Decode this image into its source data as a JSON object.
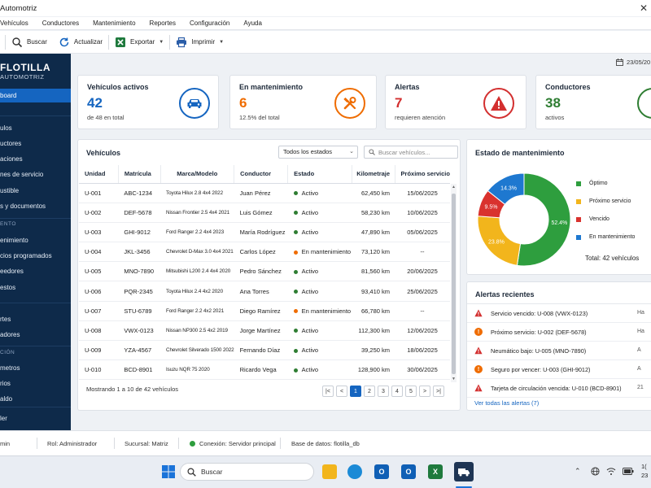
{
  "window": {
    "title": "Automotriz",
    "close_glyph": "✕"
  },
  "menu": [
    "Vehículos",
    "Conductores",
    "Mantenimiento",
    "Reportes",
    "Configuración",
    "Ayuda"
  ],
  "toolbar": {
    "search": "Buscar",
    "refresh": "Actualizar",
    "export": "Exportar",
    "print": "Imprimir"
  },
  "sidebar": {
    "brand_line1": "FLOTILLA",
    "brand_line2": "AUTOMOTRIZ",
    "dashboard": "board",
    "items_a": [
      "ulos",
      "uctores",
      "aciones",
      "nes de servicio",
      "ustible",
      "s y documentos"
    ],
    "section_b": "ENTO",
    "items_b": [
      "enimiento",
      "cios programados",
      "eedores",
      "estos"
    ],
    "items_c": [
      "rtes",
      "adores"
    ],
    "section_d": "CIÓN",
    "items_d": [
      "metros",
      "rios",
      "aldo"
    ],
    "bottom": "ler"
  },
  "date": "23/05/20",
  "kpis": {
    "vehicles": {
      "label": "Vehículos activos",
      "value": "42",
      "sub": "de 48 en total",
      "color": "#1565c0"
    },
    "maintenance": {
      "label": "En mantenimiento",
      "value": "6",
      "sub": "12.5% del total",
      "color": "#ef6c00"
    },
    "alerts": {
      "label": "Alertas",
      "value": "7",
      "sub": "requieren atención",
      "color": "#d32f2f"
    },
    "drivers": {
      "label": "Conductores",
      "value": "38",
      "sub": "activos",
      "color": "#2e7d32"
    }
  },
  "vehicles_panel": {
    "title": "Vehículos",
    "filter": "Todos los estados",
    "search_placeholder": "Buscar vehículos...",
    "columns": [
      "Unidad",
      "Matrícula",
      "Marca/Modelo",
      "Conductor",
      "Estado",
      "Kilometraje",
      "Próximo servicio"
    ],
    "rows": [
      {
        "unit": "U-001",
        "plate": "ABC-1234",
        "model": "Toyota Hilux 2.8 4x4 2022",
        "driver": "Juan Pérez",
        "status": "Activo",
        "km": "62,450 km",
        "next": "15/06/2025"
      },
      {
        "unit": "U-002",
        "plate": "DEF-5678",
        "model": "Nissan Frontier 2.5 4x4 2021",
        "driver": "Luis Gómez",
        "status": "Activo",
        "km": "58,230 km",
        "next": "10/06/2025"
      },
      {
        "unit": "U-003",
        "plate": "GHI-9012",
        "model": "Ford Ranger 2.2 4x4 2023",
        "driver": "María Rodríguez",
        "status": "Activo",
        "km": "47,890 km",
        "next": "05/06/2025"
      },
      {
        "unit": "U-004",
        "plate": "JKL-3456",
        "model": "Chevrolet D-Max 3.0 4x4 2021",
        "driver": "Carlos López",
        "status": "En mantenimiento",
        "km": "73,120 km",
        "next": "--"
      },
      {
        "unit": "U-005",
        "plate": "MNO-7890",
        "model": "Mitsubishi L200 2.4 4x4 2020",
        "driver": "Pedro Sánchez",
        "status": "Activo",
        "km": "81,560 km",
        "next": "20/06/2025"
      },
      {
        "unit": "U-006",
        "plate": "PQR-2345",
        "model": "Toyota Hilux 2.4 4x2 2020",
        "driver": "Ana Torres",
        "status": "Activo",
        "km": "93,410 km",
        "next": "25/06/2025"
      },
      {
        "unit": "U-007",
        "plate": "STU-6789",
        "model": "Ford Ranger 2.2 4x2 2021",
        "driver": "Diego Ramírez",
        "status": "En mantenimiento",
        "km": "66,780 km",
        "next": "--"
      },
      {
        "unit": "U-008",
        "plate": "VWX-0123",
        "model": "Nissan NP300 2.5 4x2 2019",
        "driver": "Jorge Martínez",
        "status": "Activo",
        "km": "112,300 km",
        "next": "12/06/2025"
      },
      {
        "unit": "U-009",
        "plate": "YZA-4567",
        "model": "Chevrolet Silverado 1500 2022",
        "driver": "Fernando Díaz",
        "status": "Activo",
        "km": "39,250 km",
        "next": "18/06/2025"
      },
      {
        "unit": "U-010",
        "plate": "BCD-8901",
        "model": "Isuzu NQR 75 2020",
        "driver": "Ricardo Vega",
        "status": "Activo",
        "km": "128,900 km",
        "next": "30/06/2025"
      }
    ],
    "showing": "Mostrando 1 a 10 de 42 vehículos",
    "pages": [
      "1",
      "2",
      "3",
      "4",
      "5"
    ],
    "pager_first": "|<",
    "pager_prev": "<",
    "pager_next": ">",
    "pager_last": ">|"
  },
  "status_colors": {
    "Activo": "#2e7d32",
    "En mantenimiento": "#ef6c00"
  },
  "maintenance_panel": {
    "title": "Estado de mantenimiento",
    "total": "Total:  42 vehículos"
  },
  "chart_data": {
    "type": "pie",
    "title": "Estado de mantenimiento",
    "slices": [
      {
        "name": "Óptimo",
        "value": 52.4,
        "label": "52.4%",
        "count": "22",
        "color": "#2e9e3e"
      },
      {
        "name": "Próximo servicio",
        "value": 23.8,
        "label": "23.8%",
        "count": "10",
        "color": "#f2b51c"
      },
      {
        "name": "Vencido",
        "value": 9.5,
        "label": "9.5%",
        "count": "4",
        "color": "#d9322e"
      },
      {
        "name": "En mantenimiento",
        "value": 14.3,
        "label": "14.3%",
        "count": "6",
        "color": "#1e78d0"
      }
    ],
    "legend": "right"
  },
  "alerts_panel": {
    "title": "Alertas recientes",
    "items": [
      {
        "text": "Servicio vencido: U-008 (VWX-0123)",
        "time": "Ha",
        "level": "error"
      },
      {
        "text": "Próximo servicio: U-002 (DEF-5678)",
        "time": "Ha",
        "level": "warning"
      },
      {
        "text": "Neumático bajo: U-005 (MNO-7890)",
        "time": "A",
        "level": "error"
      },
      {
        "text": "Seguro por vencer: U-003 (GHI-9012)",
        "time": "A",
        "level": "warning"
      },
      {
        "text": "Tarjeta de circulación vencida: U-010 (BCD-8901)",
        "time": "21",
        "level": "error"
      }
    ],
    "view_all": "Ver todas las alertas (7)"
  },
  "statusbar": {
    "user": "min",
    "role": "Rol: Administrador",
    "branch": "Sucursal: Matriz",
    "connection": "Conexión: Servidor principal",
    "db": "Base de datos:  flotilla_db"
  },
  "taskbar": {
    "search": "Buscar",
    "time": "1(",
    "date": "23"
  }
}
